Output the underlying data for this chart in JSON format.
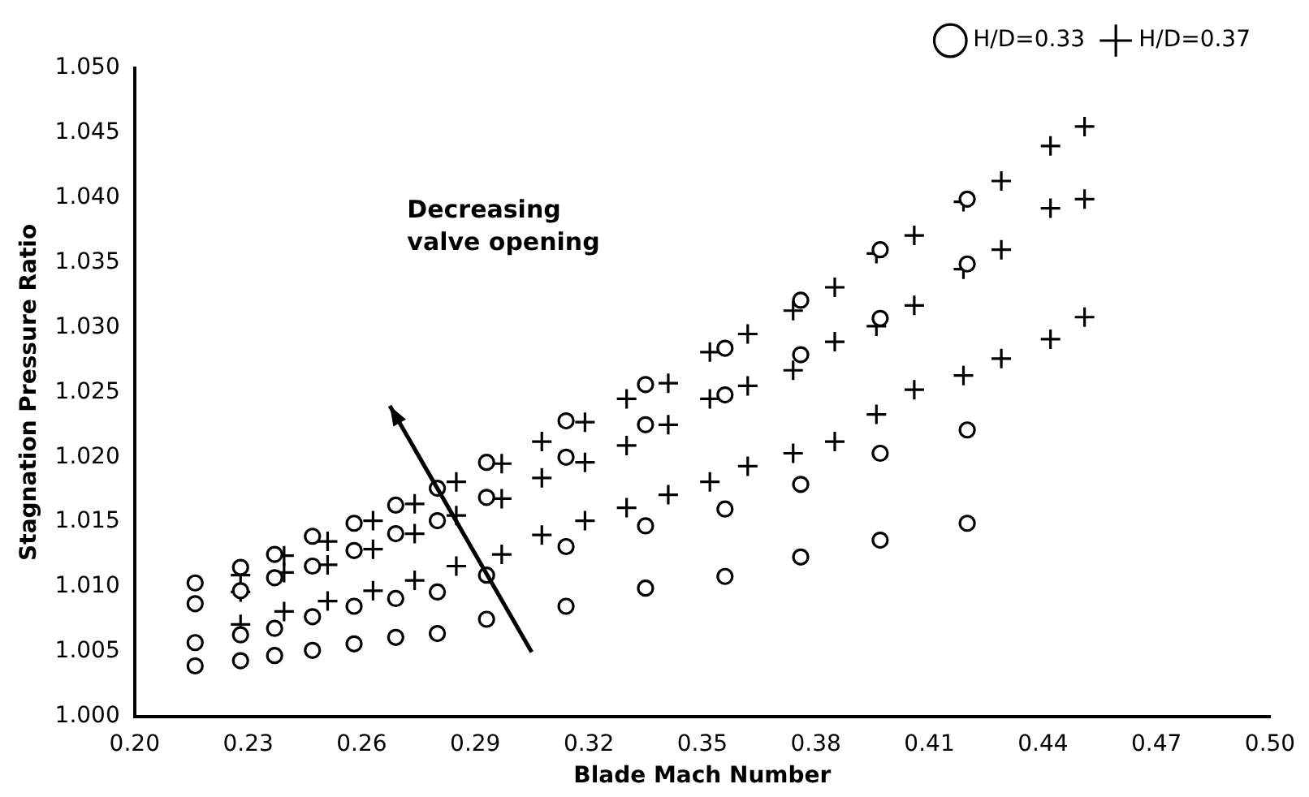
{
  "chart_data": {
    "type": "scatter",
    "xlabel": "Blade Mach Number",
    "ylabel": "Stagnation Pressure Ratio",
    "xlim": [
      0.2,
      0.5
    ],
    "xticks": [
      {
        "value": 0.2,
        "label": "0.20"
      },
      {
        "value": 0.23,
        "label": "0.23"
      },
      {
        "value": 0.26,
        "label": "0.26"
      },
      {
        "value": 0.29,
        "label": "0.29"
      },
      {
        "value": 0.32,
        "label": "0.32"
      },
      {
        "value": 0.35,
        "label": "0.35"
      },
      {
        "value": 0.38,
        "label": "0.38"
      },
      {
        "value": 0.41,
        "label": "0.41"
      },
      {
        "value": 0.44,
        "label": "0.44"
      },
      {
        "value": 0.47,
        "label": "0.47"
      },
      {
        "value": 0.5,
        "label": "0.50"
      }
    ],
    "ylim": [
      1.0,
      1.05
    ],
    "yticks": [
      {
        "value": 1.0,
        "label": "1.000"
      },
      {
        "value": 1.005,
        "label": "1.005"
      },
      {
        "value": 1.01,
        "label": "1.010"
      },
      {
        "value": 1.015,
        "label": "1.015"
      },
      {
        "value": 1.02,
        "label": "1.020"
      },
      {
        "value": 1.025,
        "label": "1.025"
      },
      {
        "value": 1.03,
        "label": "1.030"
      },
      {
        "value": 1.035,
        "label": "1.035"
      },
      {
        "value": 1.04,
        "label": "1.040"
      },
      {
        "value": 1.045,
        "label": "1.045"
      },
      {
        "value": 1.05,
        "label": "1.050"
      }
    ],
    "grid": false,
    "legend": "top right",
    "annotations": [
      "Decreasing\nvalve opening"
    ],
    "series": [
      {
        "name": "H/D=0.33",
        "color": "#000000",
        "marker": "circle",
        "x": [
          0.216,
          0.216,
          0.216,
          0.216,
          0.228,
          0.228,
          0.228,
          0.228,
          0.237,
          0.237,
          0.237,
          0.237,
          0.247,
          0.247,
          0.247,
          0.247,
          0.258,
          0.258,
          0.258,
          0.258,
          0.269,
          0.269,
          0.269,
          0.269,
          0.28,
          0.28,
          0.28,
          0.28,
          0.293,
          0.293,
          0.293,
          0.293,
          0.314,
          0.314,
          0.314,
          0.314,
          0.335,
          0.335,
          0.335,
          0.335,
          0.356,
          0.356,
          0.356,
          0.356,
          0.376,
          0.376,
          0.376,
          0.376,
          0.397,
          0.397,
          0.397,
          0.397,
          0.42,
          0.42,
          0.42,
          0.42
        ],
        "values": [
          1.0103,
          1.0087,
          1.0057,
          1.0039,
          1.0115,
          1.0097,
          1.0063,
          1.0043,
          1.0125,
          1.0107,
          1.0068,
          1.0047,
          1.0139,
          1.0116,
          1.0077,
          1.0051,
          1.0149,
          1.0128,
          1.0085,
          1.0056,
          1.0163,
          1.0141,
          1.0091,
          1.0061,
          1.0176,
          1.0151,
          1.0096,
          1.0064,
          1.0196,
          1.0169,
          1.0109,
          1.0075,
          1.0228,
          1.02,
          1.0131,
          1.0085,
          1.0256,
          1.0225,
          1.0147,
          1.0099,
          1.0284,
          1.0248,
          1.016,
          1.0108,
          1.0321,
          1.0279,
          1.0179,
          1.0123,
          1.036,
          1.0307,
          1.0203,
          1.0136,
          1.0399,
          1.0349,
          1.0221,
          1.0149
        ]
      },
      {
        "name": "H/D=0.37",
        "color": "#000000",
        "marker": "cross",
        "x": [
          0.228,
          0.2395,
          0.251,
          0.263,
          0.274,
          0.285,
          0.297,
          0.3076,
          0.319,
          0.33,
          0.341,
          0.352,
          0.362,
          0.374,
          0.385,
          0.396,
          0.406,
          0.419,
          0.429,
          0.442,
          0.451,
          0.228,
          0.2395,
          0.251,
          0.263,
          0.274,
          0.285,
          0.297,
          0.3076,
          0.319,
          0.33,
          0.341,
          0.352,
          0.362,
          0.374,
          0.385,
          0.396,
          0.406,
          0.419,
          0.429,
          0.442,
          0.451,
          0.228,
          0.2395,
          0.251,
          0.263,
          0.274,
          0.285,
          0.297,
          0.3076,
          0.319,
          0.33,
          0.341,
          0.352,
          0.362,
          0.374,
          0.385,
          0.396,
          0.406,
          0.419,
          0.429,
          0.442,
          0.451
        ],
        "values": [
          1.0109,
          1.0124,
          1.0135,
          1.0151,
          1.0164,
          1.0181,
          1.0195,
          1.0212,
          1.0227,
          1.0245,
          1.0257,
          1.0281,
          1.0295,
          1.0313,
          1.0331,
          1.0357,
          1.0371,
          1.0397,
          1.0413,
          1.044,
          1.0455,
          1.0096,
          1.0111,
          1.0117,
          1.0129,
          1.0141,
          1.0155,
          1.0168,
          1.0184,
          1.0196,
          1.0209,
          1.0225,
          1.0245,
          1.0255,
          1.0267,
          1.0289,
          1.0301,
          1.0317,
          1.0345,
          1.036,
          1.0392,
          1.0399,
          1.0071,
          1.0081,
          1.0089,
          1.0097,
          1.0105,
          1.0116,
          1.0125,
          1.014,
          1.0151,
          1.0161,
          1.0171,
          1.0181,
          1.0193,
          1.0203,
          1.0212,
          1.0233,
          1.0252,
          1.0263,
          1.0276,
          1.0291,
          1.0308
        ]
      }
    ]
  }
}
